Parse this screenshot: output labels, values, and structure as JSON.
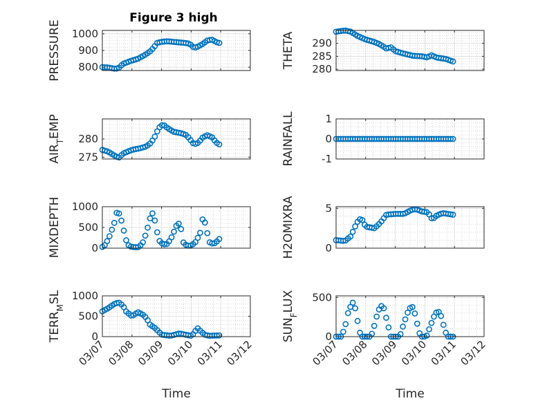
{
  "figure": {
    "title": "Figure 3 high"
  },
  "colors": {
    "marker": "#0072bd",
    "axis": "#262626",
    "grid": "#bcbcbc",
    "background": "#ffffff"
  },
  "chart_data": [
    {
      "type": "scatter",
      "title": "Figure 3 high",
      "ylabel": "PRESSURE",
      "xlabel": "",
      "x_tick_labels": [],
      "xlim": [
        0,
        5
      ],
      "ylim": [
        780,
        1020
      ],
      "yticks": [
        {
          "v": 800,
          "label": "800"
        },
        {
          "v": 900,
          "label": "900"
        },
        {
          "v": 1000,
          "label": "1000"
        }
      ],
      "series_anchors": [
        [
          0,
          800
        ],
        [
          0.2,
          798
        ],
        [
          0.45,
          790
        ],
        [
          0.55,
          795
        ],
        [
          0.7,
          820
        ],
        [
          0.85,
          830
        ],
        [
          1.0,
          840
        ],
        [
          1.2,
          850
        ],
        [
          1.5,
          880
        ],
        [
          1.65,
          900
        ],
        [
          1.75,
          920
        ],
        [
          1.85,
          945
        ],
        [
          2.0,
          952
        ],
        [
          2.2,
          955
        ],
        [
          2.5,
          950
        ],
        [
          2.8,
          945
        ],
        [
          2.95,
          940
        ],
        [
          3.1,
          915
        ],
        [
          3.25,
          925
        ],
        [
          3.4,
          940
        ],
        [
          3.55,
          960
        ],
        [
          3.7,
          965
        ],
        [
          3.85,
          950
        ],
        [
          3.95,
          945
        ]
      ]
    },
    {
      "type": "scatter",
      "ylabel": "THETA",
      "xlabel": "",
      "x_tick_labels": [],
      "xlim": [
        0,
        5
      ],
      "ylim": [
        279.5,
        295
      ],
      "yticks": [
        {
          "v": 280,
          "label": "280"
        },
        {
          "v": 285,
          "label": "285"
        },
        {
          "v": 290,
          "label": "290"
        }
      ],
      "series_anchors": [
        [
          0,
          294.5
        ],
        [
          0.3,
          295
        ],
        [
          0.5,
          294.5
        ],
        [
          0.7,
          293
        ],
        [
          1.0,
          291.5
        ],
        [
          1.3,
          290.5
        ],
        [
          1.5,
          289.5
        ],
        [
          1.7,
          288
        ],
        [
          1.85,
          288.5
        ],
        [
          2.0,
          287
        ],
        [
          2.3,
          286
        ],
        [
          2.6,
          285.2
        ],
        [
          2.9,
          285
        ],
        [
          3.1,
          284.5
        ],
        [
          3.2,
          285.5
        ],
        [
          3.4,
          284.5
        ],
        [
          3.7,
          284
        ],
        [
          3.95,
          283
        ]
      ]
    },
    {
      "type": "scatter",
      "ylabel": "AIR_TEMP",
      "xlabel": "",
      "x_tick_labels": [],
      "xlim": [
        0,
        5
      ],
      "ylim": [
        274.5,
        285.5
      ],
      "yticks": [
        {
          "v": 275,
          "label": "275"
        },
        {
          "v": 280,
          "label": "280"
        }
      ],
      "series_anchors": [
        [
          0,
          277
        ],
        [
          0.2,
          276.5
        ],
        [
          0.4,
          275.5
        ],
        [
          0.55,
          274.8
        ],
        [
          0.7,
          276
        ],
        [
          1.0,
          277
        ],
        [
          1.3,
          277.5
        ],
        [
          1.5,
          278
        ],
        [
          1.65,
          279
        ],
        [
          1.8,
          281
        ],
        [
          1.9,
          283
        ],
        [
          2.05,
          284
        ],
        [
          2.2,
          283
        ],
        [
          2.4,
          282
        ],
        [
          2.7,
          281.5
        ],
        [
          2.85,
          281
        ],
        [
          2.95,
          280
        ],
        [
          3.1,
          278.5
        ],
        [
          3.25,
          279
        ],
        [
          3.4,
          280.5
        ],
        [
          3.55,
          281
        ],
        [
          3.7,
          280.5
        ],
        [
          3.85,
          279
        ],
        [
          3.95,
          278.5
        ]
      ]
    },
    {
      "type": "scatter",
      "ylabel": "RAINFALL",
      "xlabel": "",
      "x_tick_labels": [],
      "xlim": [
        0,
        5
      ],
      "ylim": [
        -1,
        1
      ],
      "yticks": [
        {
          "v": -1,
          "label": "-1"
        },
        {
          "v": 0,
          "label": "0"
        },
        {
          "v": 1,
          "label": "1"
        }
      ],
      "series_anchors": [
        [
          0,
          0
        ],
        [
          3.95,
          0
        ]
      ]
    },
    {
      "type": "scatter",
      "ylabel": "MIXDEPTH",
      "xlabel": "",
      "x_tick_labels": [],
      "xlim": [
        0,
        5
      ],
      "ylim": [
        0,
        1000
      ],
      "yticks": [
        {
          "v": 0,
          "label": "0"
        },
        {
          "v": 500,
          "label": "500"
        },
        {
          "v": 1000,
          "label": "1000"
        }
      ],
      "series_anchors": [
        [
          0,
          30
        ],
        [
          0.1,
          80
        ],
        [
          0.25,
          300
        ],
        [
          0.4,
          600
        ],
        [
          0.5,
          900
        ],
        [
          0.6,
          800
        ],
        [
          0.7,
          500
        ],
        [
          0.8,
          200
        ],
        [
          0.9,
          50
        ],
        [
          1.0,
          30
        ],
        [
          1.2,
          20
        ],
        [
          1.35,
          100
        ],
        [
          1.5,
          400
        ],
        [
          1.6,
          700
        ],
        [
          1.7,
          850
        ],
        [
          1.8,
          600
        ],
        [
          1.9,
          200
        ],
        [
          2.0,
          120
        ],
        [
          2.15,
          80
        ],
        [
          2.3,
          200
        ],
        [
          2.45,
          450
        ],
        [
          2.55,
          630
        ],
        [
          2.65,
          500
        ],
        [
          2.75,
          100
        ],
        [
          2.9,
          60
        ],
        [
          3.0,
          60
        ],
        [
          3.15,
          150
        ],
        [
          3.3,
          350
        ],
        [
          3.4,
          750
        ],
        [
          3.5,
          550
        ],
        [
          3.6,
          150
        ],
        [
          3.75,
          100
        ],
        [
          3.85,
          150
        ],
        [
          3.95,
          220
        ]
      ]
    },
    {
      "type": "scatter",
      "ylabel": "H2OMIXRA",
      "xlabel": "",
      "x_tick_labels": [],
      "xlim": [
        0,
        5
      ],
      "ylim": [
        0,
        5.2
      ],
      "yticks": [
        {
          "v": 0,
          "label": "0"
        },
        {
          "v": 5,
          "label": "5"
        }
      ],
      "series_anchors": [
        [
          0,
          1
        ],
        [
          0.3,
          0.9
        ],
        [
          0.5,
          1.5
        ],
        [
          0.7,
          3.2
        ],
        [
          0.85,
          3.8
        ],
        [
          1.0,
          2.7
        ],
        [
          1.3,
          2.5
        ],
        [
          1.5,
          3.2
        ],
        [
          1.7,
          4.2
        ],
        [
          2.0,
          4.3
        ],
        [
          2.3,
          4.3
        ],
        [
          2.55,
          4.8
        ],
        [
          2.7,
          4.9
        ],
        [
          2.9,
          4.6
        ],
        [
          3.1,
          4.5
        ],
        [
          3.25,
          3.6
        ],
        [
          3.4,
          4.1
        ],
        [
          3.6,
          4.4
        ],
        [
          3.95,
          4.2
        ]
      ]
    },
    {
      "type": "scatter",
      "ylabel": "TERR_MSL",
      "xlabel": "Time",
      "x_tick_labels": [
        "03/07",
        "03/08",
        "03/09",
        "03/10",
        "03/11",
        "03/12"
      ],
      "xlim": [
        0,
        5
      ],
      "ylim": [
        0,
        1000
      ],
      "yticks": [
        {
          "v": 0,
          "label": "0"
        },
        {
          "v": 500,
          "label": "500"
        },
        {
          "v": 1000,
          "label": "1000"
        }
      ],
      "series_anchors": [
        [
          0,
          620
        ],
        [
          0.2,
          700
        ],
        [
          0.4,
          800
        ],
        [
          0.55,
          840
        ],
        [
          0.7,
          760
        ],
        [
          0.8,
          620
        ],
        [
          1.0,
          500
        ],
        [
          1.2,
          600
        ],
        [
          1.35,
          550
        ],
        [
          1.5,
          450
        ],
        [
          1.6,
          300
        ],
        [
          1.8,
          200
        ],
        [
          2.0,
          50
        ],
        [
          2.3,
          20
        ],
        [
          2.6,
          80
        ],
        [
          2.8,
          50
        ],
        [
          3.0,
          20
        ],
        [
          3.1,
          80
        ],
        [
          3.2,
          220
        ],
        [
          3.3,
          150
        ],
        [
          3.45,
          50
        ],
        [
          3.6,
          20
        ],
        [
          3.95,
          30
        ]
      ]
    },
    {
      "type": "scatter",
      "ylabel": "SUN_FLUX",
      "xlabel": "Time",
      "x_tick_labels": [
        "03/07",
        "03/08",
        "03/09",
        "03/10",
        "03/11",
        "03/12"
      ],
      "xlim": [
        0,
        5
      ],
      "ylim": [
        0,
        520
      ],
      "yticks": [
        {
          "v": 0,
          "label": "0"
        },
        {
          "v": 500,
          "label": "500"
        }
      ],
      "series_anchors": [
        [
          0,
          0
        ],
        [
          0.18,
          0
        ],
        [
          0.3,
          120
        ],
        [
          0.42,
          330
        ],
        [
          0.55,
          430
        ],
        [
          0.6,
          440
        ],
        [
          0.68,
          300
        ],
        [
          0.78,
          80
        ],
        [
          0.85,
          0
        ],
        [
          1.18,
          0
        ],
        [
          1.3,
          150
        ],
        [
          1.42,
          330
        ],
        [
          1.55,
          400
        ],
        [
          1.6,
          380
        ],
        [
          1.72,
          200
        ],
        [
          1.85,
          0
        ],
        [
          2.15,
          0
        ],
        [
          2.3,
          180
        ],
        [
          2.45,
          340
        ],
        [
          2.55,
          390
        ],
        [
          2.62,
          360
        ],
        [
          2.75,
          150
        ],
        [
          2.85,
          0
        ],
        [
          3.05,
          0
        ],
        [
          3.2,
          150
        ],
        [
          3.35,
          300
        ],
        [
          3.45,
          320
        ],
        [
          3.52,
          300
        ],
        [
          3.65,
          120
        ],
        [
          3.75,
          0
        ],
        [
          3.95,
          0
        ]
      ]
    }
  ]
}
